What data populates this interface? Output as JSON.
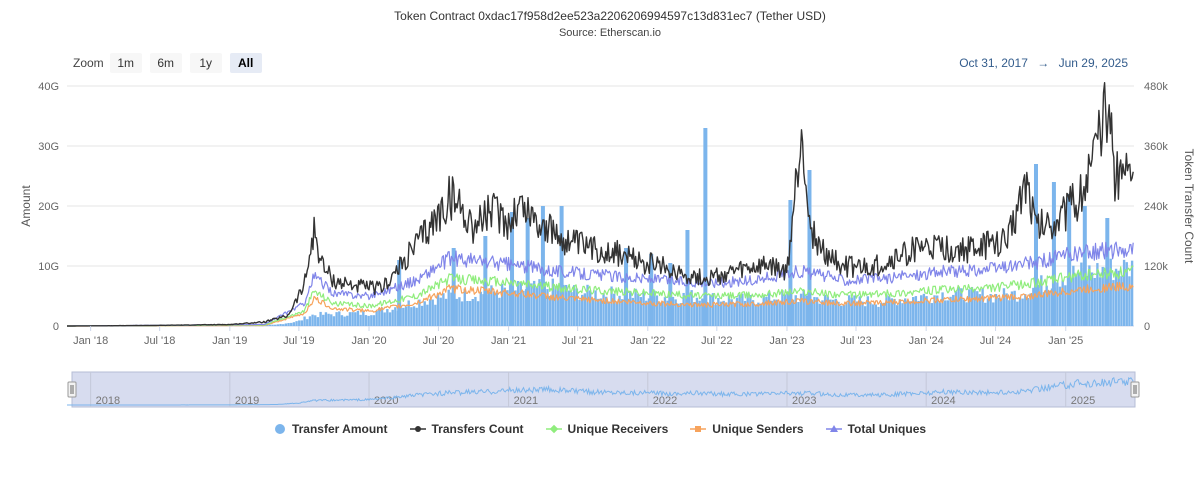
{
  "header": {
    "title": "Token Contract 0xdac17f958d2ee523a2206206994597c13d831ec7 (Tether USD)",
    "subtitle": "Source: Etherscan.io"
  },
  "zoom": {
    "label": "Zoom",
    "buttons": [
      "1m",
      "6m",
      "1y",
      "All"
    ],
    "active": "All"
  },
  "range": {
    "from": "Oct 31, 2017",
    "arrow": "→",
    "to": "Jun 29, 2025"
  },
  "colors": {
    "transfer_amount": "#7cb5ec",
    "transfers_count": "#333333",
    "unique_receivers": "#90ed7d",
    "unique_senders": "#f7a35c",
    "total_uniques": "#8085e9",
    "navigator_mask": "#d7dcef",
    "navigator_line": "#7cb5ec"
  },
  "chart_data": {
    "type": "line",
    "x_range": [
      "2017-10-31",
      "2025-06-29"
    ],
    "x_ticks": [
      "Jan '18",
      "Jul '18",
      "Jan '19",
      "Jul '19",
      "Jan '20",
      "Jul '20",
      "Jan '21",
      "Jul '21",
      "Jan '22",
      "Jul '22",
      "Jan '23",
      "Jul '23",
      "Jan '24",
      "Jul '24",
      "Jan '25"
    ],
    "y_left": {
      "label": "Amount",
      "ticks": [
        "0",
        "10G",
        "20G",
        "30G",
        "40G"
      ],
      "range": [
        0,
        40
      ]
    },
    "y_right": {
      "label": "Token Transfer Count",
      "ticks": [
        "0",
        "120k",
        "240k",
        "360k",
        "480k"
      ],
      "range": [
        0,
        480
      ]
    },
    "navigator_ticks": [
      "2018",
      "2019",
      "2020",
      "2021",
      "2022",
      "2023",
      "2024",
      "2025"
    ],
    "legend_position": "bottom",
    "series": [
      {
        "name": "Transfer Amount",
        "type": "column",
        "axis": "left",
        "unit": "G",
        "points": [
          [
            "2017-10-31",
            0
          ],
          [
            "2018-06-01",
            0
          ],
          [
            "2019-01-01",
            0.05
          ],
          [
            "2019-05-01",
            0.2
          ],
          [
            "2019-07-01",
            0.8
          ],
          [
            "2019-08-01",
            1.8
          ],
          [
            "2019-10-01",
            2.0
          ],
          [
            "2020-01-01",
            2.2
          ],
          [
            "2020-03-01",
            3.0
          ],
          [
            "2020-05-01",
            4.0
          ],
          [
            "2020-07-01",
            4.8
          ],
          [
            "2020-09-01",
            5.2
          ],
          [
            "2020-11-01",
            5.5
          ],
          [
            "2021-01-01",
            6.0
          ],
          [
            "2021-03-01",
            6.2
          ],
          [
            "2021-05-01",
            6.4
          ],
          [
            "2021-07-01",
            5.6
          ],
          [
            "2021-09-01",
            5.4
          ],
          [
            "2021-11-01",
            5.3
          ],
          [
            "2022-01-01",
            5.0
          ],
          [
            "2022-03-01",
            4.8
          ],
          [
            "2022-05-01",
            5.0
          ],
          [
            "2022-07-01",
            4.6
          ],
          [
            "2022-09-01",
            4.4
          ],
          [
            "2022-11-01",
            4.6
          ],
          [
            "2023-01-01",
            5.0
          ],
          [
            "2023-03-01",
            4.8
          ],
          [
            "2023-05-01",
            4.3
          ],
          [
            "2023-07-01",
            4.2
          ],
          [
            "2023-09-01",
            4.1
          ],
          [
            "2023-11-01",
            4.6
          ],
          [
            "2024-01-01",
            5.0
          ],
          [
            "2024-03-01",
            5.4
          ],
          [
            "2024-05-01",
            5.2
          ],
          [
            "2024-07-01",
            5.0
          ],
          [
            "2024-09-01",
            5.4
          ],
          [
            "2024-11-01",
            7.0
          ],
          [
            "2025-01-01",
            8.5
          ],
          [
            "2025-03-01",
            9.0
          ],
          [
            "2025-05-01",
            9.5
          ],
          [
            "2025-06-29",
            9.8
          ]
        ],
        "spikes": [
          [
            "2020-03-20",
            11
          ],
          [
            "2020-08-10",
            13
          ],
          [
            "2020-11-01",
            15
          ],
          [
            "2021-01-10",
            19
          ],
          [
            "2021-02-20",
            18
          ],
          [
            "2021-04-01",
            20
          ],
          [
            "2021-05-20",
            20
          ],
          [
            "2021-11-05",
            13
          ],
          [
            "2022-01-10",
            12
          ],
          [
            "2022-03-01",
            10.5
          ],
          [
            "2022-04-15",
            16
          ],
          [
            "2022-06-01",
            33
          ],
          [
            "2023-01-10",
            21
          ],
          [
            "2023-03-01",
            26
          ],
          [
            "2024-10-15",
            27
          ],
          [
            "2024-12-01",
            24
          ],
          [
            "2025-01-10",
            22
          ],
          [
            "2025-02-20",
            20
          ],
          [
            "2025-04-20",
            18
          ]
        ]
      },
      {
        "name": "Transfers Count",
        "type": "line",
        "axis": "right",
        "points": [
          [
            "2017-10-31",
            0
          ],
          [
            "2018-06-01",
            1
          ],
          [
            "2019-01-01",
            3
          ],
          [
            "2019-04-01",
            8
          ],
          [
            "2019-06-01",
            20
          ],
          [
            "2019-07-15",
            80
          ],
          [
            "2019-08-10",
            190
          ],
          [
            "2019-09-01",
            120
          ],
          [
            "2019-10-01",
            90
          ],
          [
            "2019-12-01",
            80
          ],
          [
            "2020-02-01",
            75
          ],
          [
            "2020-03-15",
            110
          ],
          [
            "2020-05-01",
            160
          ],
          [
            "2020-07-01",
            220
          ],
          [
            "2020-08-01",
            260
          ],
          [
            "2020-09-01",
            235
          ],
          [
            "2020-10-01",
            200
          ],
          [
            "2020-11-15",
            230
          ],
          [
            "2021-01-01",
            210
          ],
          [
            "2021-02-01",
            245
          ],
          [
            "2021-04-01",
            200
          ],
          [
            "2021-06-01",
            170
          ],
          [
            "2021-08-01",
            155
          ],
          [
            "2021-10-01",
            150
          ],
          [
            "2021-12-01",
            130
          ],
          [
            "2022-02-01",
            120
          ],
          [
            "2022-04-01",
            105
          ],
          [
            "2022-06-01",
            95
          ],
          [
            "2022-09-01",
            110
          ],
          [
            "2022-11-15",
            120
          ],
          [
            "2023-01-01",
            105
          ],
          [
            "2023-02-10",
            400
          ],
          [
            "2023-03-01",
            200
          ],
          [
            "2023-04-01",
            150
          ],
          [
            "2023-06-01",
            120
          ],
          [
            "2023-08-01",
            115
          ],
          [
            "2023-10-01",
            130
          ],
          [
            "2023-12-01",
            155
          ],
          [
            "2024-02-01",
            155
          ],
          [
            "2024-04-01",
            150
          ],
          [
            "2024-06-01",
            160
          ],
          [
            "2024-08-01",
            170
          ],
          [
            "2024-09-20",
            300
          ],
          [
            "2024-10-15",
            200
          ],
          [
            "2024-12-01",
            210
          ],
          [
            "2025-02-01",
            250
          ],
          [
            "2025-03-15",
            330
          ],
          [
            "2025-04-20",
            440
          ],
          [
            "2025-05-10",
            300
          ],
          [
            "2025-06-01",
            320
          ],
          [
            "2025-06-29",
            310
          ]
        ]
      },
      {
        "name": "Unique Receivers",
        "type": "line",
        "axis": "right",
        "points": [
          [
            "2017-10-31",
            0
          ],
          [
            "2019-04-01",
            2
          ],
          [
            "2019-07-15",
            30
          ],
          [
            "2019-08-10",
            70
          ],
          [
            "2019-10-01",
            45
          ],
          [
            "2020-01-01",
            40
          ],
          [
            "2020-05-01",
            60
          ],
          [
            "2020-08-01",
            95
          ],
          [
            "2020-11-01",
            90
          ],
          [
            "2021-02-01",
            85
          ],
          [
            "2021-06-01",
            75
          ],
          [
            "2021-10-01",
            70
          ],
          [
            "2022-02-01",
            65
          ],
          [
            "2022-06-01",
            60
          ],
          [
            "2022-10-01",
            62
          ],
          [
            "2023-02-01",
            70
          ],
          [
            "2023-06-01",
            62
          ],
          [
            "2023-10-01",
            65
          ],
          [
            "2024-02-01",
            72
          ],
          [
            "2024-06-01",
            75
          ],
          [
            "2024-10-01",
            85
          ],
          [
            "2025-02-01",
            100
          ],
          [
            "2025-05-01",
            105
          ],
          [
            "2025-06-29",
            108
          ]
        ]
      },
      {
        "name": "Unique Senders",
        "type": "line",
        "axis": "right",
        "points": [
          [
            "2017-10-31",
            0
          ],
          [
            "2019-04-01",
            1
          ],
          [
            "2019-07-15",
            25
          ],
          [
            "2019-08-10",
            55
          ],
          [
            "2019-10-01",
            35
          ],
          [
            "2020-01-01",
            30
          ],
          [
            "2020-05-01",
            45
          ],
          [
            "2020-08-01",
            75
          ],
          [
            "2020-11-01",
            70
          ],
          [
            "2021-02-01",
            65
          ],
          [
            "2021-06-01",
            55
          ],
          [
            "2021-10-01",
            50
          ],
          [
            "2022-02-01",
            45
          ],
          [
            "2022-06-01",
            42
          ],
          [
            "2022-10-01",
            44
          ],
          [
            "2023-02-01",
            50
          ],
          [
            "2023-06-01",
            45
          ],
          [
            "2023-10-01",
            47
          ],
          [
            "2024-02-01",
            52
          ],
          [
            "2024-06-01",
            55
          ],
          [
            "2024-10-01",
            60
          ],
          [
            "2025-02-01",
            72
          ],
          [
            "2025-05-01",
            78
          ],
          [
            "2025-06-29",
            80
          ]
        ]
      },
      {
        "name": "Total Uniques",
        "type": "line",
        "axis": "right",
        "points": [
          [
            "2017-10-31",
            0
          ],
          [
            "2019-04-01",
            3
          ],
          [
            "2019-07-15",
            45
          ],
          [
            "2019-08-10",
            100
          ],
          [
            "2019-10-01",
            65
          ],
          [
            "2020-01-01",
            60
          ],
          [
            "2020-05-01",
            90
          ],
          [
            "2020-08-01",
            135
          ],
          [
            "2020-11-01",
            128
          ],
          [
            "2021-02-01",
            120
          ],
          [
            "2021-06-01",
            108
          ],
          [
            "2021-10-01",
            100
          ],
          [
            "2022-02-01",
            92
          ],
          [
            "2022-06-01",
            86
          ],
          [
            "2022-10-01",
            90
          ],
          [
            "2023-02-01",
            110
          ],
          [
            "2023-06-01",
            92
          ],
          [
            "2023-10-01",
            96
          ],
          [
            "2024-02-01",
            108
          ],
          [
            "2024-06-01",
            112
          ],
          [
            "2024-10-01",
            125
          ],
          [
            "2025-02-01",
            145
          ],
          [
            "2025-05-01",
            152
          ],
          [
            "2025-06-29",
            155
          ]
        ]
      }
    ]
  }
}
